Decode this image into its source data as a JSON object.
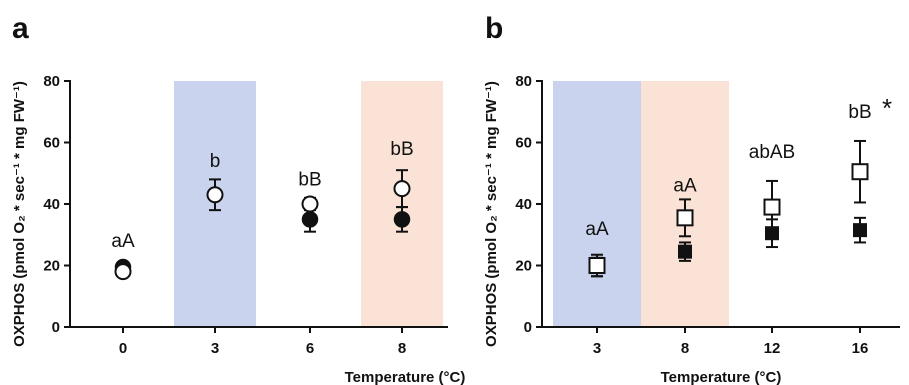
{
  "chart_data": [
    {
      "panel": "a",
      "type": "scatter",
      "xlabel": "Temperature (°C)",
      "ylabel": "OXPHOS (pmol O₂ * sec⁻¹ * mg FW⁻¹)",
      "ylim": [
        0,
        80
      ],
      "yticks": [
        0,
        20,
        40,
        60,
        80
      ],
      "categories": [
        "0",
        "3",
        "6",
        "8"
      ],
      "shaded_bands": [
        {
          "category": "3",
          "color": "#c9d3ee"
        },
        {
          "category": "8",
          "color": "#fbe2d6"
        }
      ],
      "series": [
        {
          "marker": "open-circle",
          "values": [
            18,
            43,
            40,
            45
          ],
          "errors": [
            0,
            5,
            2,
            6
          ]
        },
        {
          "marker": "filled-circle",
          "values": [
            19.5,
            null,
            35,
            35
          ],
          "errors": [
            0,
            null,
            4,
            4
          ]
        }
      ],
      "annotations": [
        "aA",
        "b",
        "bB",
        "bB"
      ],
      "annotation_y": [
        26,
        52,
        46,
        56
      ]
    },
    {
      "panel": "b",
      "type": "scatter",
      "xlabel": "Temperature (°C)",
      "ylabel": "OXPHOS (pmol O₂ * sec⁻¹ * mg FW⁻¹)",
      "ylim": [
        0,
        80
      ],
      "yticks": [
        0,
        20,
        40,
        60,
        80
      ],
      "categories": [
        "3",
        "8",
        "12",
        "16"
      ],
      "shaded_bands": [
        {
          "category": "3",
          "color": "#c9d3ee"
        },
        {
          "category": "8",
          "color": "#fbe2d6"
        }
      ],
      "series": [
        {
          "marker": "open-square",
          "values": [
            20,
            35.5,
            39,
            50.5
          ],
          "errors": [
            3.5,
            6,
            8.5,
            10
          ]
        },
        {
          "marker": "filled-square",
          "values": [
            19.5,
            24.5,
            30.5,
            31.5
          ],
          "errors": [
            3,
            3,
            4.5,
            4
          ]
        }
      ],
      "annotations": [
        "aA",
        "aA",
        "abAB",
        "bB"
      ],
      "annotation_y": [
        30,
        44,
        55,
        68
      ],
      "significance": {
        "category": "16",
        "text": "*"
      }
    }
  ]
}
